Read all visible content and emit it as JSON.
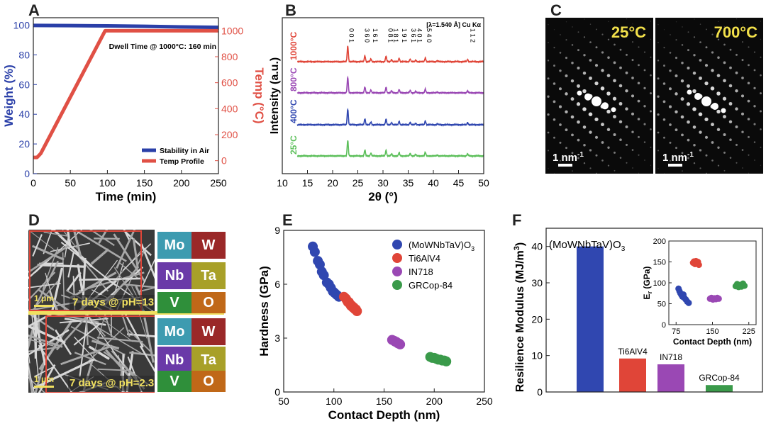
{
  "panels": {
    "A": "A",
    "B": "B",
    "C": "C",
    "D": "D",
    "E": "E",
    "F": "F"
  },
  "chart_data": [
    {
      "id": "A",
      "type": "line",
      "xlabel": "Time (min)",
      "ylabel": "Weight (%)",
      "ylabel_right": "Temp (°C)",
      "xlim": [
        0,
        250
      ],
      "ylim": [
        0,
        105
      ],
      "ylim_right": [
        -100,
        1100
      ],
      "xticks": [
        "0",
        "50",
        "100",
        "150",
        "200",
        "250"
      ],
      "yticks": [
        "0",
        "20",
        "40",
        "60",
        "80",
        "100"
      ],
      "yticks_right": [
        "0",
        "200",
        "400",
        "600",
        "800",
        "1000"
      ],
      "annotation": "Dwell Time @ 1000°C: 160 min",
      "legend_position": "bottom-right",
      "colors": {
        "weight": "#2a3fa8",
        "temp": "#e05045",
        "axis_left": "#2a3fa8",
        "axis_right": "#e05045"
      },
      "series": [
        {
          "name": "Stability in Air",
          "axis": "left",
          "x": [
            0,
            50,
            100,
            150,
            200,
            250
          ],
          "y": [
            99.8,
            99.7,
            99.5,
            99.2,
            98.8,
            98.5
          ]
        },
        {
          "name": "Temp Profile",
          "axis": "right",
          "x": [
            0,
            5,
            10,
            97,
            100,
            250
          ],
          "y": [
            25,
            25,
            55,
            1000,
            1000,
            1000
          ]
        }
      ]
    },
    {
      "id": "B",
      "type": "line",
      "xlabel": "2θ (°)",
      "ylabel": "Intensity (a.u.)",
      "xlim": [
        10,
        50
      ],
      "xticks": [
        "10",
        "15",
        "20",
        "25",
        "30",
        "35",
        "40",
        "45",
        "50"
      ],
      "source_label": "[λ=1.540 Å] Cu Kα",
      "peak_labels": [
        {
          "x": 22.9,
          "text": "0 0 1"
        },
        {
          "x": 26.0,
          "text": "3 6 0"
        },
        {
          "x": 27.6,
          "text": "1 6 1"
        },
        {
          "x": 30.6,
          "text": "0 8 1"
        },
        {
          "x": 31.7,
          "text": "1 8 1"
        },
        {
          "x": 33.4,
          "text": "1 9 1"
        },
        {
          "x": 35.2,
          "text": "3 6 1"
        },
        {
          "x": 36.4,
          "text": "4 0 1"
        },
        {
          "x": 38.3,
          "text": "5 4 0"
        },
        {
          "x": 47.0,
          "text": "1 1 2"
        }
      ],
      "peaks": [
        {
          "x": 23.0,
          "h": 1.0
        },
        {
          "x": 26.4,
          "h": 0.38
        },
        {
          "x": 27.6,
          "h": 0.18
        },
        {
          "x": 30.6,
          "h": 0.36
        },
        {
          "x": 31.7,
          "h": 0.14
        },
        {
          "x": 33.2,
          "h": 0.22
        },
        {
          "x": 35.4,
          "h": 0.16
        },
        {
          "x": 36.5,
          "h": 0.1
        },
        {
          "x": 38.4,
          "h": 0.24
        },
        {
          "x": 40.8,
          "h": 0.06
        },
        {
          "x": 46.8,
          "h": 0.14
        }
      ],
      "series": [
        {
          "name": "1000°C",
          "color": "#e04538"
        },
        {
          "name": "800°C",
          "color": "#9a48b4"
        },
        {
          "name": "400°C",
          "color": "#3047b0"
        },
        {
          "name": "25°C",
          "color": "#5cbf5a"
        }
      ]
    },
    {
      "id": "E",
      "type": "scatter",
      "xlabel": "Contact Depth (nm)",
      "ylabel": "Hardness (GPa)",
      "xlim": [
        50,
        250
      ],
      "ylim": [
        0,
        9
      ],
      "xticks": [
        "50",
        "100",
        "150",
        "200",
        "250"
      ],
      "yticks": [
        "0",
        "3",
        "6",
        "9"
      ],
      "legend_position": "top-right",
      "series": [
        {
          "name": "(MoWNbTaV)O",
          "sub": "3",
          "color": "#3047b0",
          "x": [
            79,
            81,
            84,
            86,
            88,
            90,
            93,
            95,
            97,
            99,
            101,
            103,
            105
          ],
          "y": [
            8.1,
            7.8,
            7.3,
            7.1,
            6.7,
            6.5,
            6.1,
            6.0,
            5.8,
            5.6,
            5.5,
            5.4,
            5.3
          ]
        },
        {
          "name": "Ti6AlV4",
          "color": "#e04538",
          "x": [
            110,
            112,
            113,
            114,
            115,
            116,
            117,
            118,
            119,
            120,
            121,
            122,
            123
          ],
          "y": [
            5.3,
            5.2,
            5.1,
            5.0,
            5.0,
            4.9,
            4.8,
            4.8,
            4.7,
            4.7,
            4.6,
            4.6,
            4.5
          ]
        },
        {
          "name": "IN718",
          "color": "#9a48b4",
          "x": [
            158,
            160,
            161,
            162,
            163,
            164,
            165,
            166
          ],
          "y": [
            2.9,
            2.85,
            2.8,
            2.8,
            2.75,
            2.7,
            2.7,
            2.65
          ]
        },
        {
          "name": "GRCop-84",
          "color": "#3a9a4a",
          "x": [
            196,
            198,
            200,
            202,
            204,
            206,
            208,
            210,
            212
          ],
          "y": [
            1.95,
            1.9,
            1.9,
            1.85,
            1.8,
            1.8,
            1.75,
            1.75,
            1.7
          ]
        }
      ]
    },
    {
      "id": "F",
      "type": "bar",
      "ylabel": "Resilience Modulus (MJ/m",
      "ylabel_sup": "3",
      "ylabel_end": ")",
      "ylim": [
        0,
        45
      ],
      "yticks": [
        "0",
        "10",
        "20",
        "30",
        "40"
      ],
      "categories": [
        "(MoWNbTaV)O3",
        "Ti6AlV4",
        "IN718",
        "GRCop-84"
      ],
      "category_labels": [
        {
          "text": "(MoWNbTaV)O",
          "sub": "3"
        },
        {
          "text": "Ti6AlV4",
          "sub": ""
        },
        {
          "text": "IN718",
          "sub": ""
        },
        {
          "text": "GRCop-84",
          "sub": ""
        }
      ],
      "values": [
        40,
        9.2,
        7.6,
        1.9
      ],
      "colors": [
        "#3047b0",
        "#e04538",
        "#9a48b4",
        "#3a9a4a"
      ],
      "inset": {
        "type": "scatter",
        "xlabel": "Contact Depth (nm)",
        "ylabel": "E",
        "ylabel_sub": "r",
        "ylabel_end": " (GPa)",
        "xlim": [
          60,
          240
        ],
        "ylim": [
          0,
          200
        ],
        "xticks": [
          "75",
          "150",
          "225"
        ],
        "yticks": [
          "0",
          "50",
          "100",
          "150",
          "200"
        ],
        "series": [
          {
            "name": "(MoWNbTaV)O3",
            "color": "#3047b0",
            "x": [
              80,
              82,
              84,
              86,
              88,
              90,
              92,
              95,
              98,
              101
            ],
            "y": [
              86,
              80,
              75,
              71,
              67,
              72,
              64,
              60,
              55,
              52
            ]
          },
          {
            "name": "Ti6AlV4",
            "color": "#e04538",
            "x": [
              110,
              112,
              114,
              116,
              118,
              120,
              122
            ],
            "y": [
              148,
              151,
              145,
              152,
              146,
              150,
              143
            ]
          },
          {
            "name": "IN718",
            "color": "#9a48b4",
            "x": [
              145,
              148,
              151,
              154,
              157,
              160,
              163
            ],
            "y": [
              62,
              64,
              60,
              63,
              61,
              64,
              62
            ]
          },
          {
            "name": "GRCop-84",
            "color": "#3a9a4a",
            "x": [
              198,
              201,
              204,
              207,
              210,
              213,
              216
            ],
            "y": [
              92,
              97,
              90,
              95,
              91,
              98,
              93
            ]
          }
        ]
      }
    }
  ],
  "panel_c": {
    "temps": [
      "25°C",
      "700°C"
    ],
    "scale_bar": "1 nm",
    "scale_sup": "-1"
  },
  "panel_d": {
    "conditions": [
      "7 days @ pH=13",
      "7 days @ pH=2.3"
    ],
    "scale_bar": "1 μm",
    "elements": [
      "Mo",
      "W",
      "Nb",
      "Ta",
      "V",
      "O"
    ],
    "element_colors": {
      "Mo": "#3d9bb0",
      "W": "#9a2828",
      "Nb": "#6a3aa8",
      "Ta": "#a8a028",
      "V": "#2f8f3a",
      "O": "#c06818"
    }
  }
}
